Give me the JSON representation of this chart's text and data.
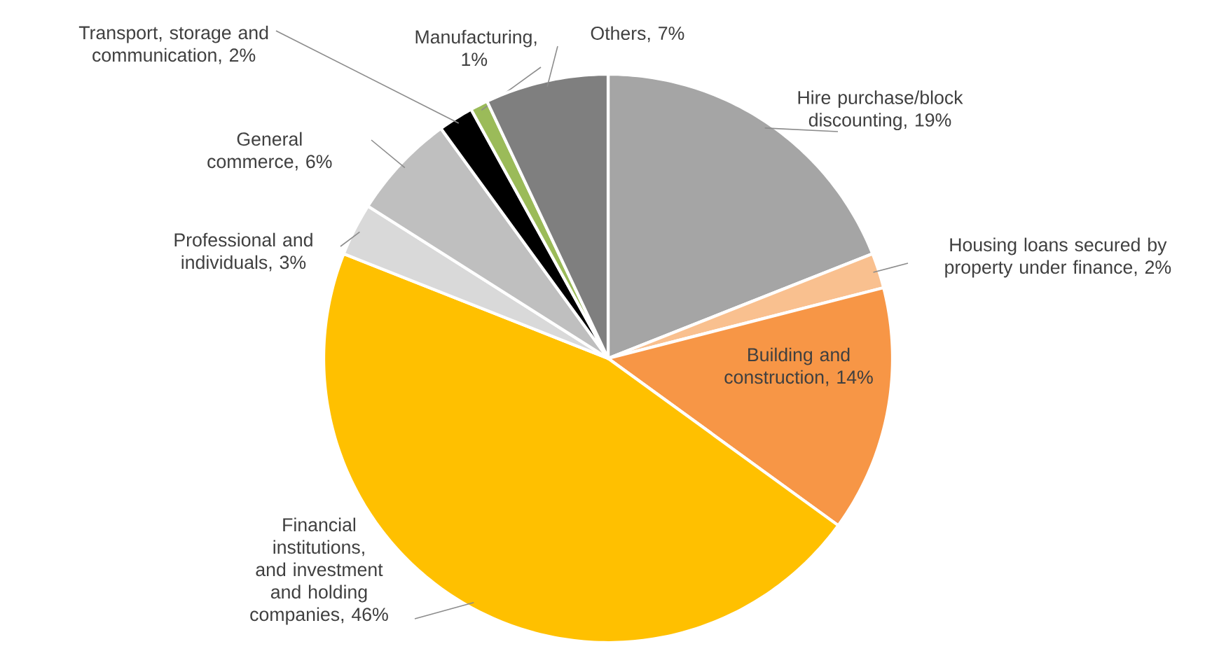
{
  "chart_data": {
    "type": "pie",
    "categories": [
      "Hire purchase/block discounting, 19%",
      "Housing loans secured by property under finance, 2%",
      "Building and construction, 14%",
      "Financial institutions, and investment and holding companies, 46%",
      "Professional and individuals, 3%",
      "General commerce, 6%",
      "Transport, storage and communication, 2%",
      "Manufacturing, 1%",
      "Others, 7%"
    ],
    "values": [
      19,
      2,
      14,
      46,
      3,
      6,
      2,
      1,
      7
    ],
    "colors": [
      "#a5a5a5",
      "#f9c08f",
      "#f79646",
      "#ffc000",
      "#d9d9d9",
      "#bfbfbf",
      "#000000",
      "#9bbb59",
      "#7f7f7f"
    ]
  }
}
